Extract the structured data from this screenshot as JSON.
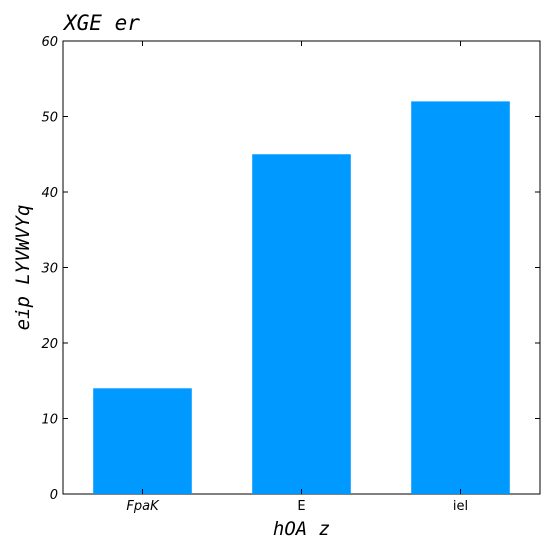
{
  "chart_data": {
    "type": "bar",
    "title": "XGE er",
    "xlabel": "hOA z",
    "ylabel": "eip LYVWVYq",
    "categories": [
      "FpaK",
      "E",
      "iel"
    ],
    "values": [
      14,
      45,
      52
    ],
    "ylim": [
      0,
      60
    ],
    "yticks": [
      0,
      10,
      20,
      30,
      40,
      50,
      60
    ],
    "grid": false,
    "bar_color": "#0099ff"
  }
}
